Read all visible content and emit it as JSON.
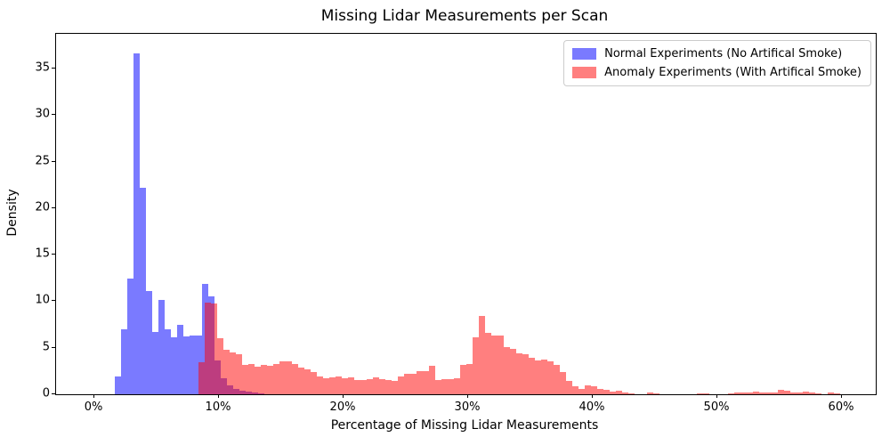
{
  "title": "Missing Lidar Measurements per Scan",
  "colors": {
    "normal_bar": "rgba(0,0,255,0.52)",
    "anomaly_bar": "rgba(255,0,0,0.5)",
    "normal_swatch": "#7878f6",
    "anomaly_swatch": "#f88080",
    "overlap_seen": "#b9407f",
    "axis": "#000000"
  },
  "legend": {
    "entries": [
      {
        "label": "Normal Experiments (No Artifical Smoke)",
        "color": "rgba(0,0,255,0.52)"
      },
      {
        "label": "Anomaly Experiments (With Artifical Smoke)",
        "color": "rgba(255,0,0,0.5)"
      }
    ]
  },
  "chart_data": {
    "type": "bar",
    "subtype": "overlaid-histogram",
    "title": "Missing Lidar Measurements per Scan",
    "xlabel": "Percentage of Missing Lidar Measurements",
    "ylabel": "Density",
    "xlim": [
      -3.07,
      62.71
    ],
    "ylim": [
      0,
      38.75
    ],
    "grid": false,
    "legend_position": "upper right",
    "x_ticks": [
      0,
      10,
      20,
      30,
      40,
      50,
      60
    ],
    "x_tick_labels": [
      "0%",
      "10%",
      "20%",
      "30%",
      "40%",
      "50%",
      "60%"
    ],
    "y_ticks": [
      0,
      5,
      10,
      15,
      20,
      25,
      30,
      35
    ],
    "y_tick_labels": [
      "0",
      "5",
      "10",
      "15",
      "20",
      "25",
      "30",
      "35"
    ],
    "bin_width_pct": 0.5,
    "series": [
      {
        "name": "Normal Experiments (No Artifical Smoke)",
        "color": "rgba(0,0,255,0.52)",
        "bin_start_pct": 1.65,
        "values": [
          1.9,
          7.0,
          12.4,
          36.6,
          22.2,
          11.1,
          6.7,
          10.1,
          7.0,
          6.1,
          7.5,
          6.2,
          6.3,
          6.3,
          11.9,
          10.5,
          3.6,
          1.7,
          1.0,
          0.6,
          0.35,
          0.25,
          0.15,
          0.1
        ]
      },
      {
        "name": "Anomaly Experiments (With Artifical Smoke)",
        "color": "rgba(255,0,0,0.5)",
        "bin_start_pct": 8.35,
        "values": [
          3.4,
          9.9,
          9.8,
          6.0,
          4.8,
          4.5,
          4.3,
          3.2,
          3.3,
          3.0,
          3.2,
          3.1,
          3.3,
          3.5,
          3.5,
          3.3,
          2.9,
          2.7,
          2.4,
          1.9,
          1.7,
          1.8,
          1.9,
          1.7,
          1.8,
          1.5,
          1.5,
          1.6,
          1.8,
          1.6,
          1.5,
          1.4,
          1.9,
          2.2,
          2.2,
          2.5,
          2.5,
          3.1,
          1.5,
          1.6,
          1.6,
          1.7,
          3.2,
          3.3,
          6.1,
          8.4,
          6.6,
          6.3,
          6.3,
          5.1,
          4.9,
          4.4,
          4.3,
          3.9,
          3.6,
          3.7,
          3.5,
          3.2,
          2.4,
          1.4,
          0.9,
          0.6,
          1.0,
          0.9,
          0.6,
          0.5,
          0.3,
          0.35,
          0.15,
          0.1,
          0,
          0,
          0.15,
          0.1,
          0,
          0,
          0,
          0,
          0,
          0,
          0.1,
          0.1,
          0,
          0,
          0,
          0.1,
          0.15,
          0.2,
          0.2,
          0.25,
          0.2,
          0.15,
          0.15,
          0.45,
          0.35,
          0.15,
          0.2,
          0.25,
          0.2,
          0.1,
          0,
          0.2,
          0.1
        ]
      }
    ]
  }
}
